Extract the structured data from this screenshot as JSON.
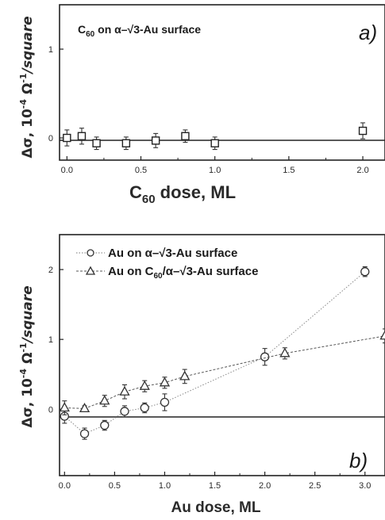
{
  "chart_data": [
    {
      "type": "scatter",
      "panel_label": "a)",
      "annotation": "C60 on α–√3-Au surface",
      "xlabel": "C60 dose, ML",
      "ylabel": "Δσ, 10-4 Ω-1/square",
      "xlim": [
        -0.05,
        2.15
      ],
      "ylim": [
        -0.25,
        1.5
      ],
      "xticks": [
        "0.0",
        "0.5",
        "1.0",
        "1.5",
        "2.0"
      ],
      "yticks": [
        "0",
        "1"
      ],
      "series": [
        {
          "marker": "square",
          "x": [
            0.0,
            0.1,
            0.2,
            0.4,
            0.6,
            0.8,
            1.0,
            2.0
          ],
          "y": [
            0.0,
            0.02,
            -0.06,
            -0.06,
            -0.03,
            0.02,
            -0.06,
            0.08
          ],
          "err": [
            0.09,
            0.09,
            0.07,
            0.07,
            0.08,
            0.07,
            0.07,
            0.09
          ]
        }
      ]
    },
    {
      "type": "scatter",
      "panel_label": "b)",
      "xlabel": "Au dose, ML",
      "ylabel": "Δσ, 10-4 Ω-1/square",
      "xlim": [
        -0.05,
        3.2
      ],
      "ylim": [
        -0.95,
        2.5
      ],
      "xticks": [
        "0.0",
        "0.5",
        "1.0",
        "1.5",
        "2.0",
        "2.5",
        "3.0"
      ],
      "yticks": [
        "0",
        "1",
        "2"
      ],
      "legend_position": "top-left",
      "series": [
        {
          "name": "Au on α–√3-Au surface",
          "marker": "circle",
          "x": [
            0.0,
            0.2,
            0.4,
            0.6,
            0.8,
            1.0,
            2.0,
            3.0
          ],
          "y": [
            -0.1,
            -0.35,
            -0.23,
            -0.03,
            0.02,
            0.1,
            0.75,
            1.97
          ],
          "err": [
            0.1,
            0.08,
            0.07,
            0.08,
            0.07,
            0.12,
            0.12,
            0.07
          ]
        },
        {
          "name": "Au on C60/α–√3-Au surface",
          "marker": "triangle",
          "x": [
            0.0,
            0.2,
            0.4,
            0.6,
            0.8,
            1.0,
            1.2,
            2.2,
            3.2
          ],
          "y": [
            0.02,
            0.01,
            0.12,
            0.25,
            0.33,
            0.38,
            0.47,
            0.8,
            1.05
          ],
          "err": [
            0.1,
            0.04,
            0.08,
            0.1,
            0.08,
            0.08,
            0.1,
            0.08,
            0.1
          ]
        }
      ]
    }
  ]
}
